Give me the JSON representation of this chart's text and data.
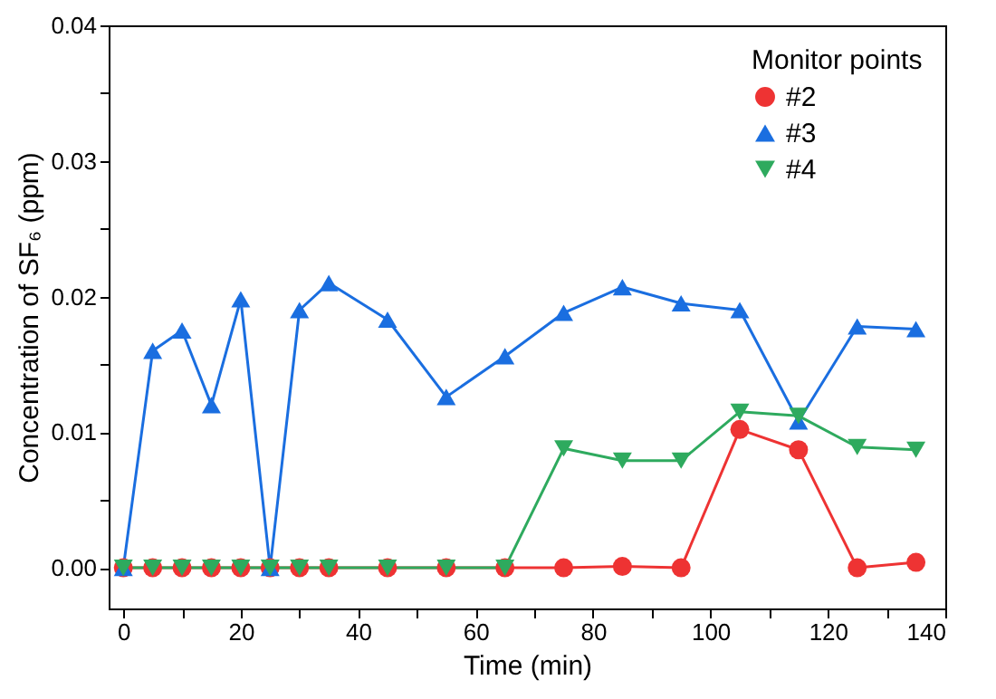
{
  "chart_data": {
    "type": "line",
    "xlabel": "Time (min)",
    "ylabel": "Concentration of SF₆ (ppm)",
    "legend_title": "Monitor points",
    "legend": "top right",
    "grid": false,
    "line_style": "solid",
    "x": [
      0,
      5,
      10,
      15,
      20,
      25,
      30,
      35,
      45,
      55,
      65,
      75,
      85,
      95,
      105,
      115,
      125,
      135
    ],
    "xlim": [
      -2.5,
      140
    ],
    "xticks": [
      0,
      {
        "value": 10,
        "label": null
      },
      20,
      {
        "value": 30,
        "label": null
      },
      40,
      {
        "value": 50,
        "label": null
      },
      60,
      {
        "value": 70,
        "label": null
      },
      80,
      {
        "value": 90,
        "label": null
      },
      100,
      {
        "value": 110,
        "label": null
      },
      120,
      {
        "value": 130,
        "label": null
      },
      140
    ],
    "ylim": [
      -0.003,
      0.04
    ],
    "yticks": [
      {
        "value": 0,
        "label": "0.00"
      },
      {
        "value": 0.005,
        "label": null
      },
      {
        "value": 0.01,
        "label": "0.01"
      },
      {
        "value": 0.015,
        "label": null
      },
      {
        "value": 0.02,
        "label": "0.02"
      },
      {
        "value": 0.025,
        "label": null
      },
      {
        "value": 0.03,
        "label": "0.03"
      },
      {
        "value": 0.035,
        "label": null
      },
      {
        "value": 0.04,
        "label": "0.04"
      }
    ],
    "series": [
      {
        "name": "#2",
        "color": "#ee3333",
        "marker": "circle",
        "values": [
          0,
          0,
          0,
          0,
          0,
          0,
          0,
          0,
          0,
          0,
          0,
          0,
          0.0001,
          0,
          0.0102,
          0.0087,
          0,
          0.0004
        ]
      },
      {
        "name": "#3",
        "color": "#1a6ee0",
        "marker": "triangle",
        "values": [
          0,
          0.016,
          0.0175,
          0.012,
          0.0198,
          0,
          0.019,
          0.021,
          0.0183,
          0.0126,
          0.0156,
          0.0188,
          0.0207,
          0.0195,
          0.019,
          0.0108,
          0.0178,
          0.0176
        ]
      },
      {
        "name": "#4",
        "color": "#2eaa5e",
        "marker": "triangle-down",
        "values": [
          0,
          0,
          0,
          0,
          0,
          0,
          0,
          0,
          0,
          0,
          0,
          0.0088,
          0.0079,
          0.0079,
          0.0115,
          0.0112,
          0.0089,
          0.0087
        ]
      }
    ]
  }
}
